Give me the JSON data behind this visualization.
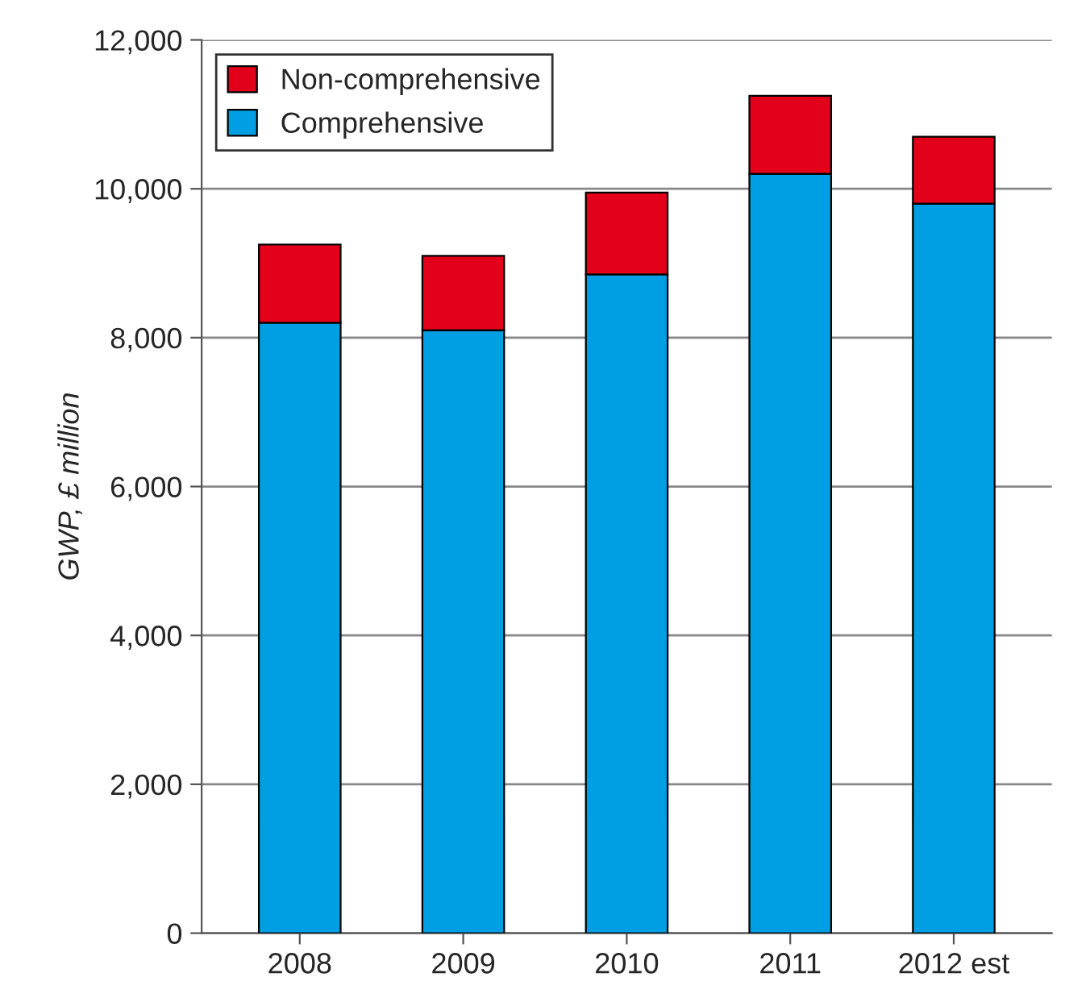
{
  "chart_data": {
    "type": "bar",
    "stacked": true,
    "ylabel": "GWP, £ million",
    "categories": [
      "2008",
      "2009",
      "2010",
      "2011",
      "2012 est"
    ],
    "series": [
      {
        "name": "Comprehensive",
        "color": "#009fe3",
        "values": [
          8200,
          8100,
          8850,
          10200,
          9800
        ]
      },
      {
        "name": "Non-comprehensive",
        "color": "#e2001a",
        "values": [
          1050,
          1000,
          1100,
          1050,
          900
        ]
      }
    ],
    "ylim": [
      0,
      12000
    ],
    "yticks": [
      {
        "value": 0,
        "label": "0"
      },
      {
        "value": 2000,
        "label": "2,000"
      },
      {
        "value": 4000,
        "label": "4,000"
      },
      {
        "value": 6000,
        "label": "6,000"
      },
      {
        "value": 8000,
        "label": "8,000"
      },
      {
        "value": 10000,
        "label": "10,000"
      },
      {
        "value": 12000,
        "label": "12,000"
      }
    ],
    "grid": "y",
    "legend": "top left"
  }
}
